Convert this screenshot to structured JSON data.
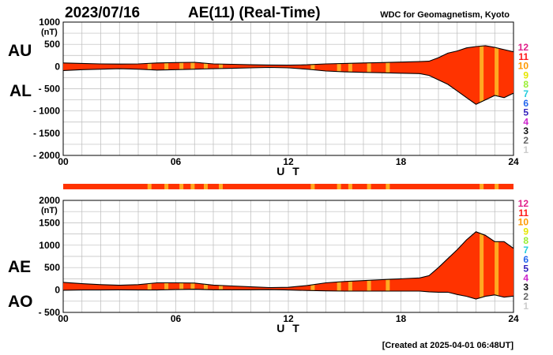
{
  "header": {
    "date": "2023/07/16",
    "title": "AE(11) (Real-Time)",
    "source": "WDC for Geomagnetism, Kyoto"
  },
  "footer": {
    "created": "[Created at 2025-04-01 06:48UT]"
  },
  "station_scale": {
    "labels": [
      "12",
      "11",
      "10",
      "9",
      "8",
      "7",
      "6",
      "5",
      "4",
      "3",
      "2",
      "1"
    ],
    "colors": [
      "#e0208a",
      "#ff1a1a",
      "#ff9900",
      "#e6e600",
      "#99ee33",
      "#22ccdd",
      "#2266ee",
      "#3322bb",
      "#cc22cc",
      "#111111",
      "#666666",
      "#cccccc"
    ]
  },
  "colors": {
    "fill_main": "#ff3300",
    "fill_stripe": "#ffaa22",
    "envelope": "#000000",
    "grid": "#bbbbbb"
  },
  "chart_data": [
    {
      "type": "area",
      "panel": "upper",
      "labels": [
        "AU",
        "AL"
      ],
      "units": "(nT)",
      "xlabel": "U T",
      "x_ticks": [
        "00",
        "06",
        "12",
        "18",
        "24"
      ],
      "y_ticks": [
        "1000",
        "500",
        "0",
        "- 500",
        "- 1000",
        "- 1500",
        "- 2000"
      ],
      "xlim": [
        0,
        24
      ],
      "ylim": [
        -2000,
        1000
      ],
      "x": [
        0,
        1,
        2,
        3,
        4,
        5,
        6,
        7,
        8,
        9,
        10,
        11,
        12,
        13,
        14,
        15,
        16,
        17,
        18,
        19,
        19.5,
        20,
        20.5,
        21,
        21.5,
        22,
        22.5,
        23,
        23.5,
        24
      ],
      "series": [
        {
          "name": "AU",
          "values": [
            80,
            70,
            60,
            55,
            60,
            80,
            90,
            95,
            60,
            50,
            40,
            35,
            30,
            40,
            60,
            70,
            80,
            90,
            100,
            110,
            120,
            200,
            300,
            350,
            420,
            450,
            470,
            430,
            380,
            330
          ]
        },
        {
          "name": "AL",
          "values": [
            -90,
            -70,
            -60,
            -50,
            -60,
            -80,
            -70,
            -60,
            -50,
            -40,
            -30,
            -20,
            -30,
            -60,
            -100,
            -120,
            -130,
            -140,
            -150,
            -160,
            -200,
            -300,
            -400,
            -550,
            -700,
            -850,
            -750,
            -650,
            -700,
            -600
          ]
        }
      ],
      "stripe_hours": [
        4.6,
        5.5,
        6.3,
        6.9,
        7.6,
        8.4,
        13.3,
        14.7,
        15.3,
        16.3,
        17.3,
        22.3,
        23.1
      ]
    },
    {
      "type": "area",
      "panel": "lower",
      "labels": [
        "AE",
        "AO"
      ],
      "units": "(nT)",
      "xlabel": "U T",
      "x_ticks": [
        "00",
        "06",
        "12",
        "18",
        "24"
      ],
      "y_ticks": [
        "2000",
        "1500",
        "1000",
        "500",
        "0",
        "- 500"
      ],
      "xlim": [
        0,
        24
      ],
      "ylim": [
        -500,
        2000
      ],
      "x": [
        0,
        1,
        2,
        3,
        4,
        5,
        6,
        7,
        8,
        9,
        10,
        11,
        12,
        13,
        14,
        15,
        16,
        17,
        18,
        19,
        19.5,
        20,
        20.5,
        21,
        21.5,
        22,
        22.5,
        23,
        23.5,
        24
      ],
      "series": [
        {
          "name": "AE",
          "values": [
            170,
            140,
            120,
            105,
            120,
            160,
            160,
            155,
            110,
            90,
            70,
            55,
            60,
            100,
            160,
            190,
            210,
            230,
            250,
            270,
            320,
            500,
            700,
            900,
            1120,
            1300,
            1220,
            1080,
            1080,
            930
          ]
        },
        {
          "name": "AO",
          "values": [
            -5,
            0,
            0,
            3,
            0,
            0,
            10,
            18,
            5,
            5,
            5,
            8,
            0,
            -10,
            -20,
            -25,
            -25,
            -25,
            -25,
            -25,
            -40,
            -50,
            -50,
            -100,
            -140,
            -200,
            -140,
            -110,
            -160,
            -135
          ]
        }
      ],
      "stripe_hours": [
        4.6,
        5.5,
        6.3,
        6.9,
        7.6,
        8.4,
        13.3,
        14.7,
        15.3,
        16.3,
        17.3,
        22.3,
        23.1
      ]
    }
  ],
  "status_bar": {
    "stripe_hours": [
      4.6,
      5.5,
      6.3,
      6.9,
      7.6,
      8.4,
      13.3,
      14.7,
      15.3,
      16.3,
      17.3,
      22.3,
      23.1
    ]
  }
}
